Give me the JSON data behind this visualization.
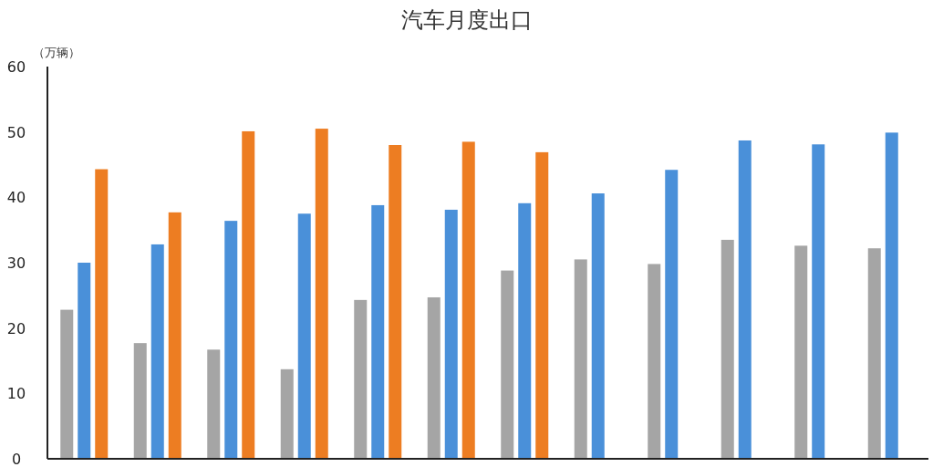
{
  "chart_data": {
    "type": "bar",
    "title": "汽车月度出口",
    "ylabel": "（万辆）",
    "categories": [
      null,
      null,
      null,
      null,
      null,
      null,
      null,
      null,
      null,
      null,
      null,
      null
    ],
    "series": [
      {
        "color": "#a5a5a5",
        "values": [
          22.8,
          17.7,
          16.7,
          13.7,
          24.3,
          24.7,
          28.8,
          30.5,
          29.8,
          33.5,
          32.6,
          32.2
        ]
      },
      {
        "color": "#4a90d9",
        "values": [
          30.0,
          32.8,
          36.4,
          37.5,
          38.8,
          38.1,
          39.1,
          40.6,
          44.2,
          48.7,
          48.1,
          49.9
        ]
      },
      {
        "color": "#ed7d22",
        "values": [
          44.3,
          37.7,
          50.1,
          50.5,
          48.0,
          48.5,
          46.9,
          null,
          null,
          null,
          null,
          null
        ]
      }
    ],
    "ylim": [
      0,
      60
    ],
    "yticks": [
      0,
      10,
      20,
      30,
      40,
      50,
      60
    ],
    "grid": false
  }
}
